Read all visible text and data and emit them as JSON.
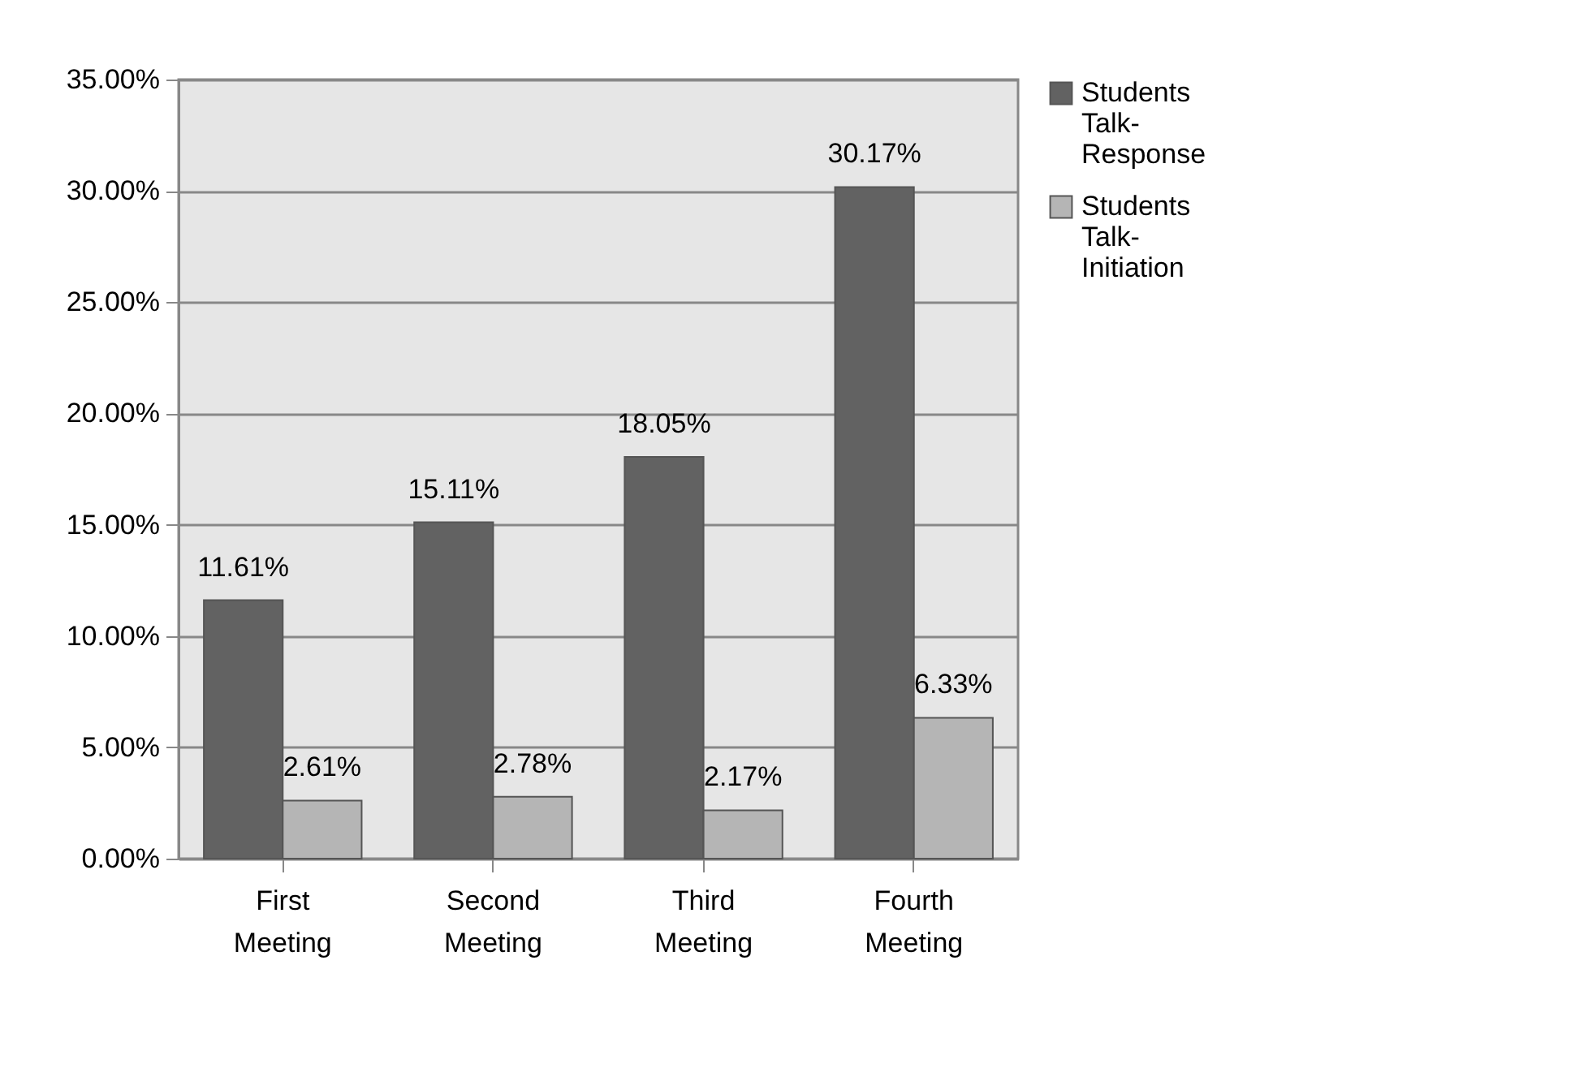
{
  "chart_data": {
    "type": "bar",
    "categories": [
      "First Meeting",
      "Second Meeting",
      "Third Meeting",
      "Fourth Meeting"
    ],
    "series": [
      {
        "name": "Students Talk-Response",
        "color": "#626262",
        "values": [
          11.61,
          15.11,
          18.05,
          30.17
        ],
        "value_labels": [
          "11.61%",
          "15.11%",
          "18.05%",
          "30.17%"
        ]
      },
      {
        "name": "Students Talk-Initiation",
        "color": "#b5b5b5",
        "values": [
          2.61,
          2.78,
          2.17,
          6.33
        ],
        "value_labels": [
          "2.61%",
          "2.78%",
          "2.17%",
          "6.33%"
        ]
      }
    ],
    "ylim": [
      0,
      35
    ],
    "yticks": [
      {
        "value": 0,
        "label": "0.00%"
      },
      {
        "value": 5,
        "label": "5.00%"
      },
      {
        "value": 10,
        "label": "10.00%"
      },
      {
        "value": 15,
        "label": "15.00%"
      },
      {
        "value": 20,
        "label": "20.00%"
      },
      {
        "value": 25,
        "label": "25.00%"
      },
      {
        "value": 30,
        "label": "30.00%"
      },
      {
        "value": 35,
        "label": "35.00%"
      }
    ],
    "grid": "y",
    "legend": "right"
  }
}
